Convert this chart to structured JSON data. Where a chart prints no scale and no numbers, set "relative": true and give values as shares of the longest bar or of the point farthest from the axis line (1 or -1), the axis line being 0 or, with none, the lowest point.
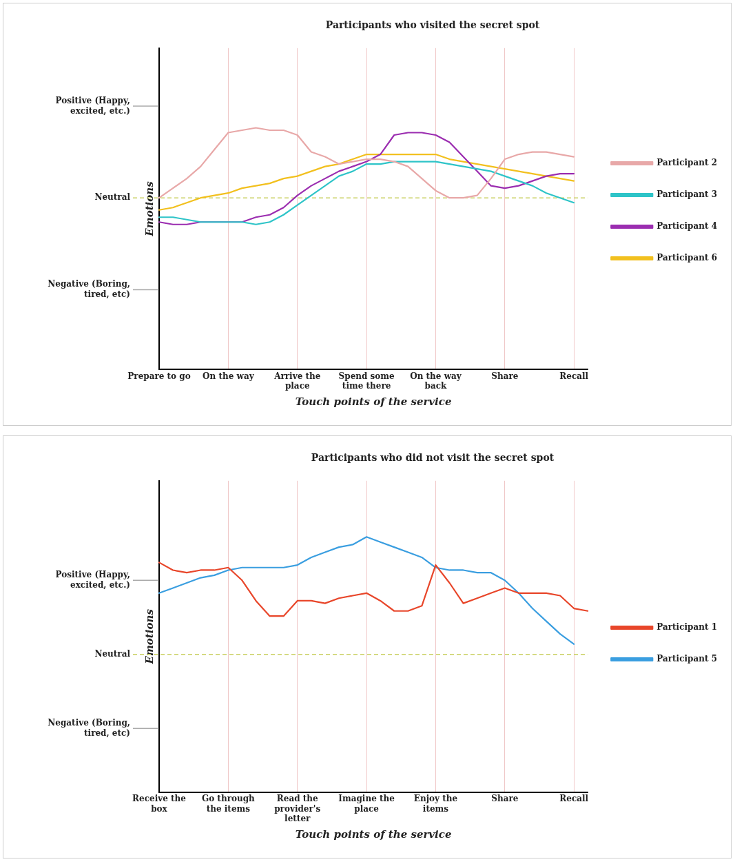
{
  "chart_data": [
    {
      "type": "line",
      "title": "Participants who visited the secret spot",
      "xlabel": "Touch points of the service",
      "ylabel": "Emotions",
      "relative": true,
      "categories": [
        "Prepare to go",
        null,
        null,
        null,
        null,
        "On the way",
        null,
        null,
        null,
        null,
        "Arrive the place",
        null,
        null,
        null,
        null,
        "Spend some time there",
        null,
        null,
        null,
        null,
        "On the way back",
        null,
        null,
        null,
        null,
        "Share",
        null,
        null,
        null,
        null,
        "Recall",
        null
      ],
      "grid": "x",
      "legend": "right",
      "marker": "none",
      "line_style": "solid",
      "ref_lines": [
        {
          "axis": "y",
          "value": 1.09,
          "label": "Positive (Happy, excited, etc.)",
          "color": "#aaaaaa",
          "line_style": "solid"
        },
        {
          "axis": "y",
          "value": 0.71,
          "label": "Neutral",
          "color": "#c9d060",
          "line_style": "dashed"
        },
        {
          "axis": "y",
          "value": 0.33,
          "label": "Negative (Boring, tired, etc)",
          "color": "#aaaaaa",
          "line_style": "solid"
        }
      ],
      "series": [
        {
          "name": "Participant 2",
          "color": "#e8a8a8",
          "values": [
            0.71,
            0.75,
            0.79,
            0.84,
            0.91,
            0.98,
            0.99,
            1,
            0.99,
            0.99,
            0.97,
            0.9,
            0.88,
            0.85,
            0.86,
            0.87,
            0.87,
            0.86,
            0.84,
            0.79,
            0.74,
            0.71,
            0.71,
            0.72,
            0.79,
            0.87,
            0.89,
            0.9,
            0.9,
            0.89,
            0.88,
            null
          ]
        },
        {
          "name": "Participant 3",
          "color": "#2ec4c8",
          "values": [
            0.63,
            0.63,
            0.62,
            0.61,
            0.61,
            0.61,
            0.61,
            0.6,
            0.61,
            0.64,
            0.68,
            0.72,
            0.76,
            0.8,
            0.82,
            0.85,
            0.85,
            0.86,
            0.86,
            0.86,
            0.86,
            0.85,
            0.84,
            0.83,
            0.82,
            0.8,
            0.78,
            0.76,
            0.73,
            0.71,
            0.69,
            null
          ]
        },
        {
          "name": "Participant 4",
          "color": "#9b2db0",
          "values": [
            0.61,
            0.6,
            0.6,
            0.61,
            0.61,
            0.61,
            0.61,
            0.63,
            0.64,
            0.67,
            0.72,
            0.76,
            0.79,
            0.82,
            0.84,
            0.86,
            0.89,
            0.97,
            0.98,
            0.98,
            0.97,
            0.94,
            0.88,
            0.82,
            0.76,
            0.75,
            0.76,
            0.78,
            0.8,
            0.81,
            0.81,
            null
          ]
        },
        {
          "name": "Participant 6",
          "color": "#f2c01e",
          "values": [
            0.66,
            0.67,
            0.69,
            0.71,
            0.72,
            0.73,
            0.75,
            0.76,
            0.77,
            0.79,
            0.8,
            0.82,
            0.84,
            0.85,
            0.87,
            0.89,
            0.89,
            0.89,
            0.89,
            0.89,
            0.89,
            0.87,
            0.86,
            0.85,
            0.84,
            0.83,
            0.82,
            0.81,
            0.8,
            0.79,
            0.78,
            null
          ]
        }
      ]
    },
    {
      "type": "line",
      "title": "Participants who did not visit the secret spot",
      "xlabel": "Touch points of the service",
      "ylabel": "Emotions",
      "relative": true,
      "categories": [
        "Receive the box",
        null,
        null,
        null,
        null,
        "Go through the items",
        null,
        null,
        null,
        null,
        "Read the provider's letter",
        null,
        null,
        null,
        null,
        "Imagine the place",
        null,
        null,
        null,
        null,
        "Enjoy the items",
        null,
        null,
        null,
        null,
        "Share",
        null,
        null,
        null,
        null,
        "Recall",
        null
      ],
      "grid": "x",
      "legend": "right",
      "marker": "none",
      "line_style": "solid",
      "ref_lines": [
        {
          "axis": "y",
          "value": 0.83,
          "label": "Positive (Happy, excited, etc.)",
          "color": "#aaaaaa",
          "line_style": "solid"
        },
        {
          "axis": "y",
          "value": 0.54,
          "label": "Neutral",
          "color": "#c9d060",
          "line_style": "dashed"
        },
        {
          "axis": "y",
          "value": 0.25,
          "label": "Negative (Boring, tired, etc)",
          "color": "#aaaaaa",
          "line_style": "solid"
        }
      ],
      "series": [
        {
          "name": "Participant 1",
          "color": "#e8462a",
          "values": [
            0.9,
            0.87,
            0.86,
            0.87,
            0.87,
            0.88,
            0.83,
            0.75,
            0.69,
            0.69,
            0.75,
            0.75,
            0.74,
            0.76,
            0.77,
            0.78,
            0.75,
            0.71,
            0.71,
            0.73,
            0.89,
            0.82,
            0.74,
            0.76,
            0.78,
            0.8,
            0.78,
            0.78,
            0.78,
            0.77,
            0.72,
            0.71
          ]
        },
        {
          "name": "Participant 5",
          "color": "#3a9ee0",
          "values": [
            0.78,
            0.8,
            0.82,
            0.84,
            0.85,
            0.87,
            0.88,
            0.88,
            0.88,
            0.88,
            0.89,
            0.92,
            0.94,
            0.96,
            0.97,
            1,
            0.98,
            0.96,
            0.94,
            0.92,
            0.88,
            0.87,
            0.87,
            0.86,
            0.86,
            0.83,
            0.78,
            0.72,
            0.67,
            0.62,
            0.58,
            null
          ]
        }
      ]
    }
  ]
}
